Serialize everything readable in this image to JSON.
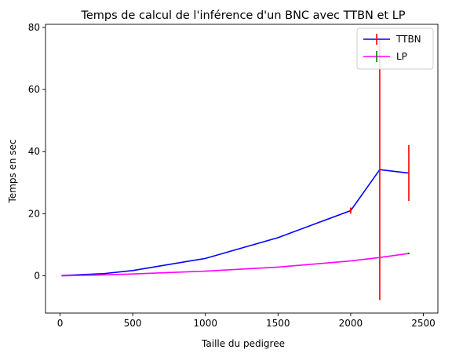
{
  "chart_data": {
    "type": "line",
    "title": "Temps de calcul de l'inférence d'un BNC avec TTBN et LP",
    "xlabel": "Taille du pedigree",
    "ylabel": "Temps en sec",
    "xlim": [
      -100,
      2600
    ],
    "ylim": [
      -12,
      81
    ],
    "xticks": [
      0,
      500,
      1000,
      1500,
      2000,
      2500
    ],
    "yticks": [
      0,
      20,
      40,
      60,
      80
    ],
    "grid": false,
    "legend_position": "top-right",
    "series": [
      {
        "name": "TTBN",
        "color": "#0000ff",
        "error_color": "#ff0000",
        "x": [
          10,
          300,
          500,
          1000,
          1500,
          2000,
          2200,
          2400
        ],
        "y": [
          0.1,
          0.7,
          1.7,
          5.6,
          12.3,
          21.0,
          34.2,
          33.1
        ],
        "err": [
          0,
          0,
          0,
          0,
          0,
          1.0,
          42.0,
          9.0
        ]
      },
      {
        "name": "LP",
        "color": "#ff00ff",
        "error_color": "#008000",
        "x": [
          10,
          300,
          500,
          1000,
          1500,
          2000,
          2200,
          2400
        ],
        "y": [
          0.0,
          0.3,
          0.6,
          1.5,
          2.8,
          4.8,
          5.9,
          7.2
        ],
        "err": [
          0,
          0,
          0,
          0,
          0,
          0,
          0,
          0.3
        ]
      }
    ]
  }
}
